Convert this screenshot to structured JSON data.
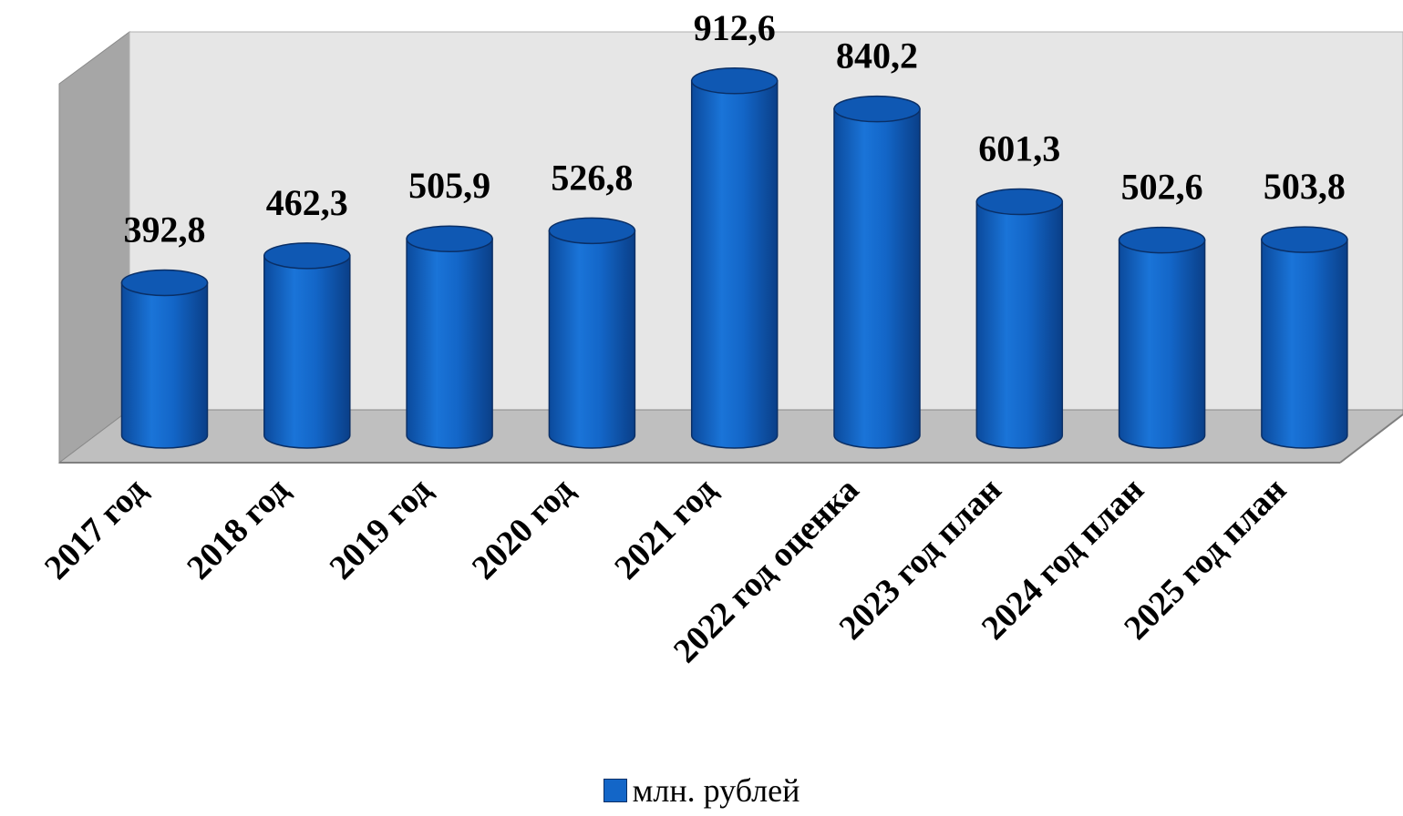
{
  "chart_data": {
    "type": "bar",
    "style": "3d-cylinder",
    "categories": [
      "2017 год",
      "2018 год",
      "2019 год",
      "2020 год",
      "2021 год",
      "2022 год оценка",
      "2023 год план",
      "2024 год план",
      "2025 год план"
    ],
    "series": [
      {
        "name": "млн. рублей",
        "values": [
          392.8,
          462.3,
          505.9,
          526.8,
          912.6,
          840.2,
          601.3,
          502.6,
          503.8
        ],
        "labels": [
          "392,8",
          "462,3",
          "505,9",
          "526,8",
          "912,6",
          "840,2",
          "601,3",
          "502,6",
          "503,8"
        ],
        "color": "#1366c8"
      }
    ],
    "title": "",
    "xlabel": "",
    "ylabel": "",
    "ylim": [
      0,
      1000
    ],
    "grid": false,
    "legend": "bottom",
    "colors": {
      "back_wall": "#e6e6e6",
      "side_wall": "#a6a6a6",
      "floor": "#bfbfbf",
      "bar_body": "#1366c8",
      "bar_top": "#0f58b3"
    }
  }
}
